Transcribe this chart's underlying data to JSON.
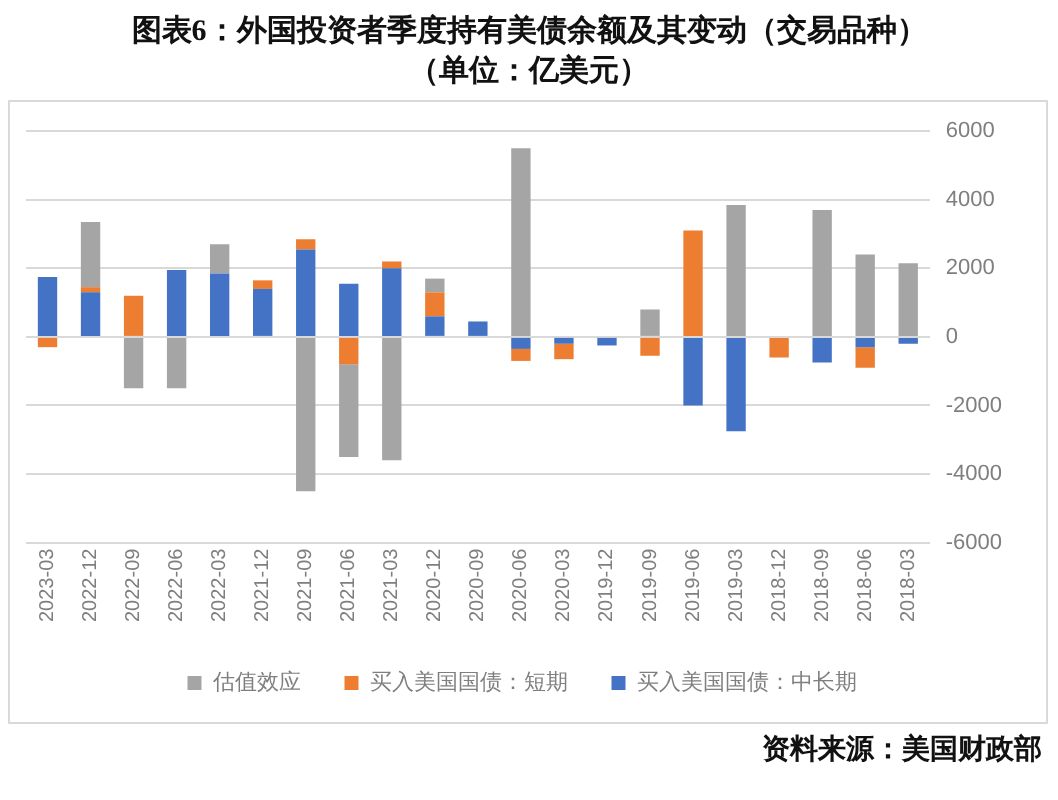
{
  "chart_data": {
    "type": "bar",
    "title": "图表6：外国投资者季度持有美债余额及其变动（交易品种）",
    "subtitle": "（单位：亿美元）",
    "categories": [
      "2023-03",
      "2022-12",
      "2022-09",
      "2022-06",
      "2022-03",
      "2021-12",
      "2021-09",
      "2021-06",
      "2021-03",
      "2020-12",
      "2020-09",
      "2020-06",
      "2020-03",
      "2019-12",
      "2019-09",
      "2019-06",
      "2019-03",
      "2018-12",
      "2018-09",
      "2018-06",
      "2018-03"
    ],
    "series": [
      {
        "name": "买入美国国债：中长期",
        "color": "#4472c4",
        "values": [
          1750,
          1300,
          0,
          1950,
          1850,
          1400,
          2550,
          1550,
          2000,
          600,
          450,
          -350,
          -200,
          -250,
          0,
          -2000,
          -2750,
          0,
          -750,
          -300,
          -200
        ]
      },
      {
        "name": "买入美国国债：短期",
        "color": "#ed7d31",
        "values": [
          -300,
          150,
          1200,
          0,
          0,
          250,
          300,
          -800,
          200,
          700,
          0,
          -350,
          -450,
          0,
          -550,
          3100,
          0,
          -600,
          0,
          -600,
          0
        ]
      },
      {
        "name": "估值效应",
        "color": "#a5a5a5",
        "values": [
          0,
          1900,
          -1500,
          -1500,
          850,
          0,
          -4500,
          -2700,
          -3600,
          400,
          0,
          5500,
          0,
          0,
          800,
          0,
          3850,
          0,
          3700,
          2400,
          2150
        ]
      }
    ],
    "stacked": true,
    "ylim": [
      -6000,
      6000
    ],
    "yticks": [
      -6000,
      -4000,
      -2000,
      0,
      2000,
      4000,
      6000
    ],
    "grid": "y",
    "legend": "bottom",
    "annotations": [
      "资料来源：美国财政部"
    ]
  }
}
